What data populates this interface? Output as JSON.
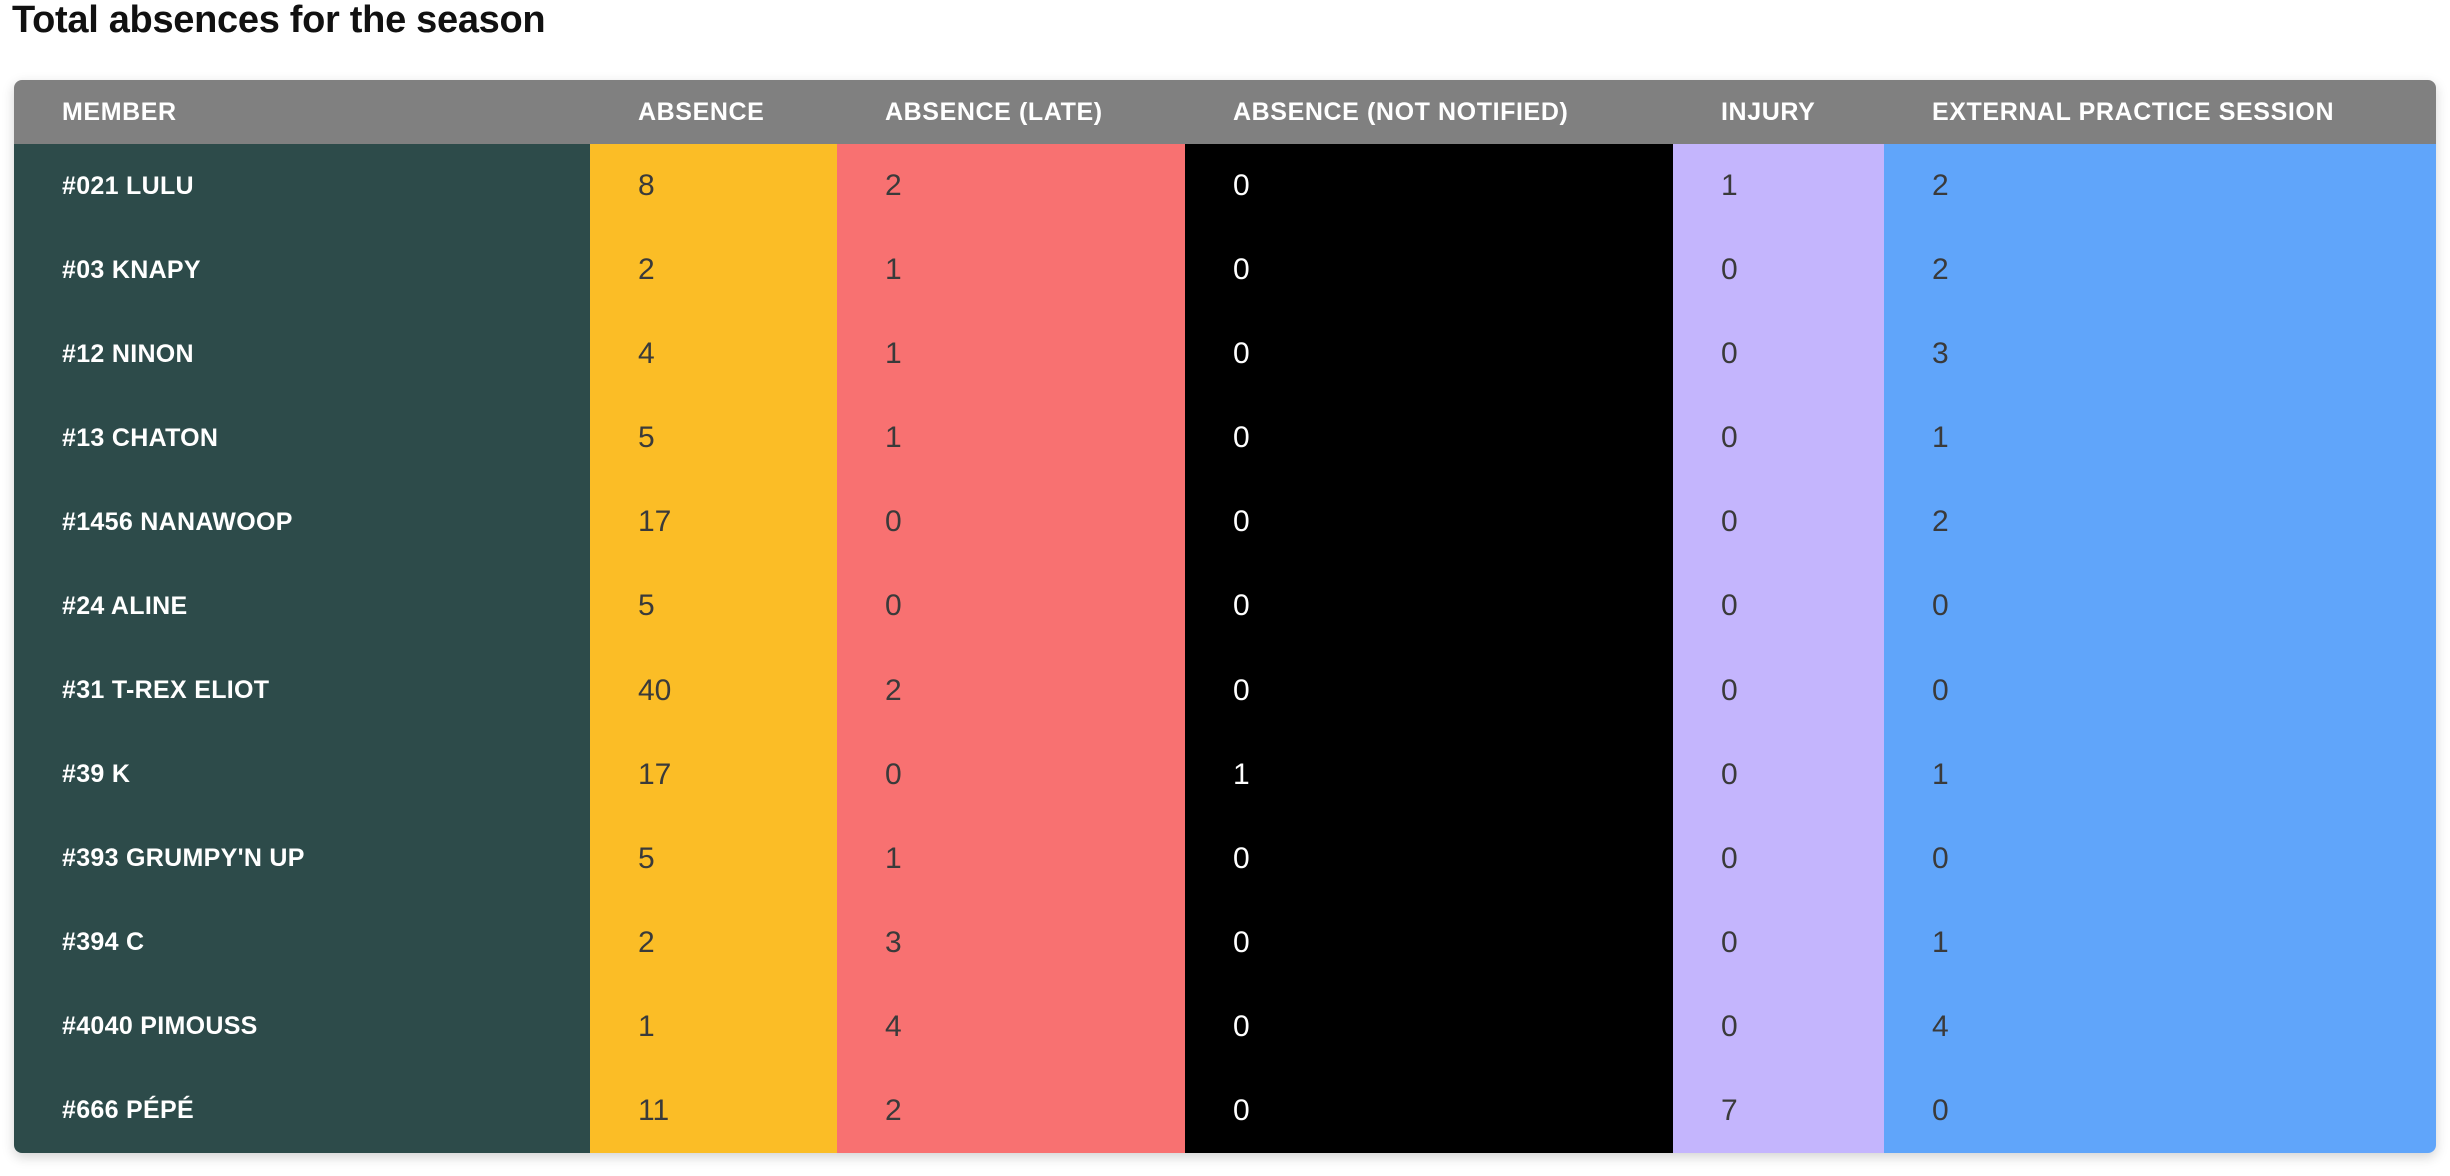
{
  "page": {
    "title": "Total absences for the season"
  },
  "table": {
    "columns": [
      {
        "key": "member",
        "label": "Member",
        "color": "#2d4b4a"
      },
      {
        "key": "absence",
        "label": "Absence",
        "color": "#fbbd26"
      },
      {
        "key": "late",
        "label": "Absence (late)",
        "color": "#f87171"
      },
      {
        "key": "not_notified",
        "label": "Absence (not notified)",
        "color": "#000000"
      },
      {
        "key": "injury",
        "label": "Injury",
        "color": "#c4b5fd"
      },
      {
        "key": "external",
        "label": "External practice session",
        "color": "#60a5fa"
      }
    ],
    "header_color": "#808080",
    "rows": [
      {
        "member": "#021 LULU",
        "absence": "8",
        "late": "2",
        "not_notified": "0",
        "injury": "1",
        "external": "2"
      },
      {
        "member": "#03 KNAPY",
        "absence": "2",
        "late": "1",
        "not_notified": "0",
        "injury": "0",
        "external": "2"
      },
      {
        "member": "#12 NINON",
        "absence": "4",
        "late": "1",
        "not_notified": "0",
        "injury": "0",
        "external": "3"
      },
      {
        "member": "#13 CHATON",
        "absence": "5",
        "late": "1",
        "not_notified": "0",
        "injury": "0",
        "external": "1"
      },
      {
        "member": "#1456 NANAWOOP",
        "absence": "17",
        "late": "0",
        "not_notified": "0",
        "injury": "0",
        "external": "2"
      },
      {
        "member": "#24 ALINE",
        "absence": "5",
        "late": "0",
        "not_notified": "0",
        "injury": "0",
        "external": "0"
      },
      {
        "member": "#31 T-REX ELIOT",
        "absence": "40",
        "late": "2",
        "not_notified": "0",
        "injury": "0",
        "external": "0"
      },
      {
        "member": "#39 K",
        "absence": "17",
        "late": "0",
        "not_notified": "1",
        "injury": "0",
        "external": "1"
      },
      {
        "member": "#393 GRUMPY'N UP",
        "absence": "5",
        "late": "1",
        "not_notified": "0",
        "injury": "0",
        "external": "0"
      },
      {
        "member": "#394 C",
        "absence": "2",
        "late": "3",
        "not_notified": "0",
        "injury": "0",
        "external": "1"
      },
      {
        "member": "#4040 PIMOUSS",
        "absence": "1",
        "late": "4",
        "not_notified": "0",
        "injury": "0",
        "external": "4"
      },
      {
        "member": "#666 PÉPÉ",
        "absence": "11",
        "late": "2",
        "not_notified": "0",
        "injury": "7",
        "external": "0"
      }
    ]
  }
}
